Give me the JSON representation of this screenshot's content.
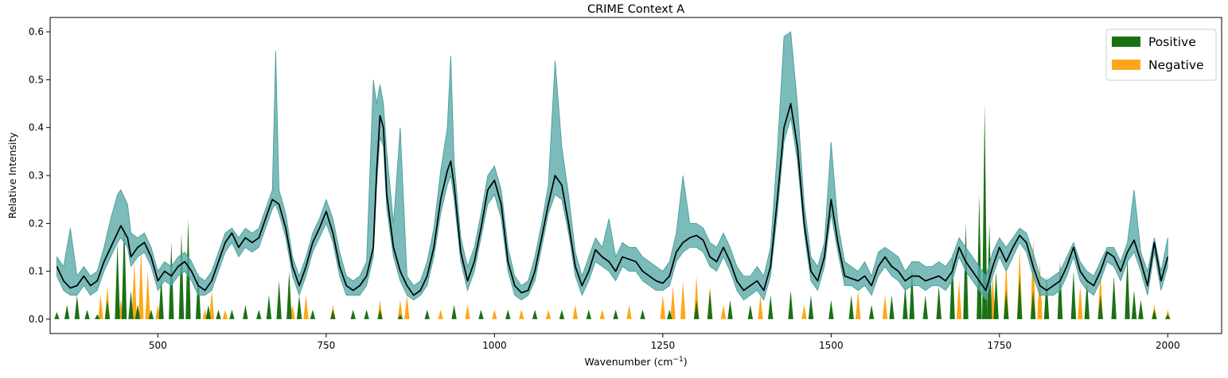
{
  "chart_data": {
    "type": "area",
    "title": "CRIME Context A",
    "xlabel": "Wavenumber (cm",
    "xlabel_sup": "−1",
    "xlabel_suffix": ")",
    "ylabel": "Relative Intensity",
    "xlim": [
      340,
      2080
    ],
    "ylim": [
      -0.03,
      0.63
    ],
    "xticks": [
      500,
      750,
      1000,
      1250,
      1500,
      1750,
      2000
    ],
    "yticks": [
      0.0,
      0.1,
      0.2,
      0.3,
      0.4,
      0.5,
      0.6
    ],
    "legend": {
      "placement": "top-right",
      "entries": [
        {
          "label": "Positive",
          "color": "#1a7114"
        },
        {
          "label": "Negative",
          "color": "#ffa719"
        }
      ]
    },
    "colors": {
      "mean_line": "#000000",
      "band_fill": "#5aaaa8",
      "band_edge": "#3f9a98",
      "positive": "#1a7114",
      "negative": "#ffa719"
    },
    "mean_spectrum": {
      "x": [
        350,
        360,
        370,
        380,
        390,
        400,
        410,
        420,
        430,
        440,
        445,
        455,
        460,
        470,
        480,
        490,
        500,
        510,
        520,
        530,
        540,
        550,
        560,
        570,
        580,
        590,
        600,
        610,
        620,
        630,
        640,
        650,
        660,
        670,
        680,
        690,
        700,
        710,
        720,
        730,
        740,
        750,
        760,
        770,
        780,
        790,
        800,
        810,
        820,
        825,
        830,
        835,
        840,
        850,
        860,
        870,
        880,
        890,
        900,
        910,
        920,
        930,
        935,
        940,
        950,
        960,
        970,
        980,
        990,
        1000,
        1010,
        1020,
        1030,
        1040,
        1050,
        1060,
        1070,
        1080,
        1090,
        1100,
        1110,
        1120,
        1130,
        1140,
        1150,
        1160,
        1170,
        1180,
        1190,
        1200,
        1210,
        1220,
        1230,
        1240,
        1250,
        1260,
        1270,
        1280,
        1290,
        1300,
        1310,
        1320,
        1330,
        1340,
        1350,
        1360,
        1370,
        1380,
        1390,
        1400,
        1410,
        1420,
        1430,
        1440,
        1450,
        1460,
        1470,
        1480,
        1490,
        1500,
        1510,
        1520,
        1530,
        1540,
        1550,
        1560,
        1570,
        1580,
        1590,
        1600,
        1610,
        1620,
        1630,
        1640,
        1650,
        1660,
        1670,
        1680,
        1690,
        1700,
        1710,
        1720,
        1730,
        1740,
        1750,
        1760,
        1770,
        1780,
        1790,
        1800,
        1810,
        1820,
        1830,
        1840,
        1850,
        1860,
        1870,
        1880,
        1890,
        1900,
        1910,
        1920,
        1930,
        1940,
        1950,
        1960,
        1970,
        1980,
        1990,
        2000
      ],
      "y": [
        0.11,
        0.08,
        0.065,
        0.07,
        0.09,
        0.07,
        0.08,
        0.12,
        0.15,
        0.18,
        0.195,
        0.17,
        0.13,
        0.15,
        0.16,
        0.13,
        0.08,
        0.1,
        0.09,
        0.11,
        0.12,
        0.1,
        0.07,
        0.06,
        0.08,
        0.12,
        0.16,
        0.18,
        0.15,
        0.17,
        0.16,
        0.17,
        0.21,
        0.25,
        0.24,
        0.19,
        0.11,
        0.07,
        0.11,
        0.16,
        0.19,
        0.225,
        0.18,
        0.11,
        0.07,
        0.06,
        0.07,
        0.09,
        0.15,
        0.31,
        0.425,
        0.4,
        0.26,
        0.15,
        0.1,
        0.07,
        0.05,
        0.06,
        0.09,
        0.15,
        0.25,
        0.31,
        0.33,
        0.28,
        0.14,
        0.08,
        0.12,
        0.19,
        0.27,
        0.29,
        0.24,
        0.12,
        0.07,
        0.055,
        0.06,
        0.1,
        0.17,
        0.24,
        0.3,
        0.28,
        0.2,
        0.11,
        0.07,
        0.1,
        0.145,
        0.13,
        0.12,
        0.1,
        0.13,
        0.125,
        0.12,
        0.1,
        0.09,
        0.08,
        0.075,
        0.09,
        0.14,
        0.16,
        0.17,
        0.175,
        0.165,
        0.13,
        0.12,
        0.15,
        0.12,
        0.08,
        0.06,
        0.07,
        0.08,
        0.06,
        0.11,
        0.25,
        0.4,
        0.45,
        0.36,
        0.2,
        0.1,
        0.08,
        0.13,
        0.25,
        0.16,
        0.09,
        0.085,
        0.08,
        0.09,
        0.07,
        0.11,
        0.13,
        0.11,
        0.1,
        0.08,
        0.09,
        0.09,
        0.08,
        0.085,
        0.09,
        0.08,
        0.1,
        0.15,
        0.12,
        0.1,
        0.08,
        0.06,
        0.11,
        0.15,
        0.12,
        0.15,
        0.175,
        0.16,
        0.11,
        0.07,
        0.06,
        0.07,
        0.08,
        0.11,
        0.15,
        0.1,
        0.08,
        0.07,
        0.1,
        0.14,
        0.13,
        0.1,
        0.14,
        0.165,
        0.12,
        0.07,
        0.16,
        0.08,
        0.13
      ]
    },
    "band": {
      "x": [
        350,
        360,
        370,
        380,
        390,
        400,
        410,
        420,
        430,
        440,
        445,
        455,
        460,
        470,
        480,
        490,
        500,
        510,
        520,
        530,
        540,
        550,
        560,
        570,
        580,
        590,
        600,
        610,
        620,
        630,
        640,
        650,
        660,
        670,
        675,
        680,
        690,
        700,
        710,
        720,
        730,
        740,
        750,
        760,
        770,
        780,
        790,
        800,
        810,
        820,
        825,
        830,
        835,
        840,
        850,
        860,
        870,
        880,
        890,
        900,
        910,
        920,
        930,
        935,
        940,
        950,
        960,
        970,
        980,
        990,
        1000,
        1010,
        1020,
        1030,
        1040,
        1050,
        1060,
        1070,
        1080,
        1090,
        1100,
        1110,
        1120,
        1130,
        1140,
        1150,
        1160,
        1170,
        1180,
        1190,
        1200,
        1210,
        1220,
        1230,
        1240,
        1250,
        1260,
        1270,
        1280,
        1290,
        1300,
        1310,
        1320,
        1330,
        1340,
        1350,
        1360,
        1370,
        1380,
        1390,
        1400,
        1410,
        1420,
        1430,
        1440,
        1450,
        1460,
        1470,
        1480,
        1490,
        1500,
        1510,
        1520,
        1530,
        1540,
        1550,
        1560,
        1570,
        1580,
        1590,
        1600,
        1610,
        1620,
        1630,
        1640,
        1650,
        1660,
        1670,
        1680,
        1690,
        1700,
        1710,
        1720,
        1730,
        1740,
        1750,
        1760,
        1770,
        1780,
        1790,
        1800,
        1810,
        1820,
        1830,
        1840,
        1850,
        1860,
        1870,
        1880,
        1890,
        1900,
        1910,
        1920,
        1930,
        1940,
        1950,
        1960,
        1970,
        1980,
        1990,
        2000
      ],
      "upper": [
        0.13,
        0.11,
        0.19,
        0.09,
        0.11,
        0.09,
        0.1,
        0.15,
        0.21,
        0.26,
        0.27,
        0.24,
        0.18,
        0.17,
        0.18,
        0.15,
        0.1,
        0.12,
        0.11,
        0.13,
        0.14,
        0.12,
        0.09,
        0.08,
        0.1,
        0.14,
        0.18,
        0.19,
        0.17,
        0.19,
        0.18,
        0.19,
        0.23,
        0.27,
        0.56,
        0.27,
        0.22,
        0.13,
        0.09,
        0.13,
        0.18,
        0.21,
        0.25,
        0.21,
        0.14,
        0.09,
        0.08,
        0.09,
        0.12,
        0.5,
        0.45,
        0.49,
        0.45,
        0.35,
        0.2,
        0.4,
        0.09,
        0.07,
        0.08,
        0.12,
        0.19,
        0.31,
        0.4,
        0.55,
        0.33,
        0.17,
        0.11,
        0.15,
        0.22,
        0.3,
        0.32,
        0.27,
        0.15,
        0.09,
        0.07,
        0.08,
        0.13,
        0.2,
        0.28,
        0.54,
        0.36,
        0.26,
        0.14,
        0.09,
        0.13,
        0.17,
        0.15,
        0.21,
        0.13,
        0.16,
        0.15,
        0.15,
        0.13,
        0.12,
        0.11,
        0.1,
        0.12,
        0.18,
        0.3,
        0.2,
        0.2,
        0.19,
        0.16,
        0.15,
        0.18,
        0.15,
        0.11,
        0.09,
        0.09,
        0.11,
        0.09,
        0.15,
        0.35,
        0.59,
        0.6,
        0.45,
        0.24,
        0.13,
        0.11,
        0.16,
        0.37,
        0.2,
        0.12,
        0.11,
        0.1,
        0.12,
        0.09,
        0.14,
        0.15,
        0.14,
        0.13,
        0.1,
        0.12,
        0.12,
        0.11,
        0.11,
        0.12,
        0.11,
        0.13,
        0.17,
        0.15,
        0.13,
        0.11,
        0.09,
        0.14,
        0.17,
        0.15,
        0.17,
        0.19,
        0.18,
        0.14,
        0.09,
        0.08,
        0.09,
        0.1,
        0.13,
        0.16,
        0.12,
        0.1,
        0.09,
        0.12,
        0.15,
        0.15,
        0.12,
        0.16,
        0.27,
        0.14,
        0.1,
        0.17,
        0.1,
        0.17
      ],
      "lower": [
        0.09,
        0.06,
        0.05,
        0.05,
        0.07,
        0.05,
        0.06,
        0.1,
        0.13,
        0.16,
        0.17,
        0.15,
        0.11,
        0.13,
        0.14,
        0.11,
        0.06,
        0.08,
        0.07,
        0.09,
        0.1,
        0.08,
        0.05,
        0.05,
        0.06,
        0.1,
        0.14,
        0.16,
        0.13,
        0.15,
        0.14,
        0.15,
        0.19,
        0.23,
        0.24,
        0.22,
        0.17,
        0.09,
        0.05,
        0.09,
        0.14,
        0.17,
        0.2,
        0.16,
        0.09,
        0.05,
        0.05,
        0.05,
        0.07,
        0.13,
        0.28,
        0.38,
        0.36,
        0.23,
        0.13,
        0.08,
        0.05,
        0.04,
        0.05,
        0.07,
        0.13,
        0.22,
        0.28,
        0.3,
        0.25,
        0.12,
        0.06,
        0.1,
        0.17,
        0.24,
        0.26,
        0.21,
        0.1,
        0.05,
        0.04,
        0.05,
        0.08,
        0.15,
        0.22,
        0.26,
        0.25,
        0.18,
        0.09,
        0.05,
        0.08,
        0.12,
        0.11,
        0.1,
        0.08,
        0.11,
        0.1,
        0.1,
        0.08,
        0.07,
        0.06,
        0.06,
        0.07,
        0.12,
        0.14,
        0.15,
        0.15,
        0.14,
        0.11,
        0.1,
        0.13,
        0.1,
        0.06,
        0.04,
        0.05,
        0.06,
        0.04,
        0.09,
        0.22,
        0.37,
        0.42,
        0.33,
        0.18,
        0.08,
        0.06,
        0.11,
        0.22,
        0.14,
        0.07,
        0.07,
        0.06,
        0.07,
        0.05,
        0.09,
        0.11,
        0.09,
        0.08,
        0.06,
        0.07,
        0.07,
        0.06,
        0.07,
        0.07,
        0.06,
        0.08,
        0.13,
        0.1,
        0.08,
        0.06,
        0.04,
        0.09,
        0.13,
        0.1,
        0.13,
        0.16,
        0.14,
        0.09,
        0.05,
        0.05,
        0.05,
        0.06,
        0.09,
        0.13,
        0.08,
        0.06,
        0.05,
        0.08,
        0.12,
        0.11,
        0.08,
        0.12,
        0.14,
        0.1,
        0.05,
        0.14,
        0.06,
        0.11
      ]
    },
    "positive_attribution": {
      "x": [
        350,
        365,
        380,
        395,
        410,
        425,
        440,
        450,
        460,
        470,
        490,
        505,
        520,
        535,
        545,
        560,
        575,
        590,
        610,
        630,
        650,
        665,
        680,
        695,
        710,
        730,
        760,
        790,
        810,
        830,
        860,
        900,
        940,
        980,
        1020,
        1060,
        1100,
        1140,
        1180,
        1220,
        1260,
        1300,
        1320,
        1350,
        1380,
        1410,
        1440,
        1470,
        1500,
        1530,
        1560,
        1590,
        1610,
        1620,
        1640,
        1660,
        1680,
        1700,
        1720,
        1728,
        1735,
        1745,
        1760,
        1780,
        1800,
        1820,
        1840,
        1860,
        1880,
        1900,
        1920,
        1940,
        1950,
        1960,
        1980,
        2000
      ],
      "values": [
        0.015,
        0.03,
        0.05,
        0.02,
        0.01,
        0.04,
        0.16,
        0.21,
        0.06,
        0.03,
        0.02,
        0.09,
        0.16,
        0.18,
        0.21,
        0.1,
        0.03,
        0.02,
        0.02,
        0.03,
        0.02,
        0.05,
        0.08,
        0.1,
        0.05,
        0.02,
        0.02,
        0.02,
        0.02,
        0.02,
        0.01,
        0.02,
        0.03,
        0.02,
        0.02,
        0.02,
        0.02,
        0.02,
        0.02,
        0.02,
        0.02,
        0.04,
        0.06,
        0.04,
        0.03,
        0.05,
        0.06,
        0.05,
        0.04,
        0.05,
        0.03,
        0.05,
        0.07,
        0.11,
        0.05,
        0.07,
        0.14,
        0.2,
        0.26,
        0.45,
        0.2,
        0.1,
        0.06,
        0.09,
        0.06,
        0.09,
        0.12,
        0.1,
        0.08,
        0.05,
        0.09,
        0.13,
        0.06,
        0.04,
        0.02,
        0.01
      ]
    },
    "negative_attribution": {
      "x": [
        415,
        425,
        445,
        465,
        475,
        485,
        500,
        570,
        580,
        600,
        700,
        720,
        760,
        830,
        860,
        870,
        920,
        960,
        1000,
        1040,
        1080,
        1120,
        1160,
        1200,
        1250,
        1265,
        1280,
        1300,
        1320,
        1340,
        1395,
        1460,
        1540,
        1580,
        1620,
        1660,
        1690,
        1720,
        1740,
        1760,
        1780,
        1800,
        1810,
        1840,
        1870,
        1900,
        1920,
        1960,
        1980,
        2000
      ],
      "values": [
        0.05,
        0.07,
        0.04,
        0.12,
        0.15,
        0.1,
        0.03,
        0.02,
        0.06,
        0.02,
        0.03,
        0.05,
        0.03,
        0.04,
        0.04,
        0.05,
        0.02,
        0.03,
        0.02,
        0.02,
        0.02,
        0.03,
        0.02,
        0.03,
        0.05,
        0.07,
        0.08,
        0.09,
        0.07,
        0.03,
        0.05,
        0.03,
        0.06,
        0.05,
        0.04,
        0.06,
        0.08,
        0.1,
        0.09,
        0.12,
        0.15,
        0.17,
        0.12,
        0.09,
        0.07,
        0.1,
        0.05,
        0.04,
        0.03,
        0.02
      ]
    }
  }
}
